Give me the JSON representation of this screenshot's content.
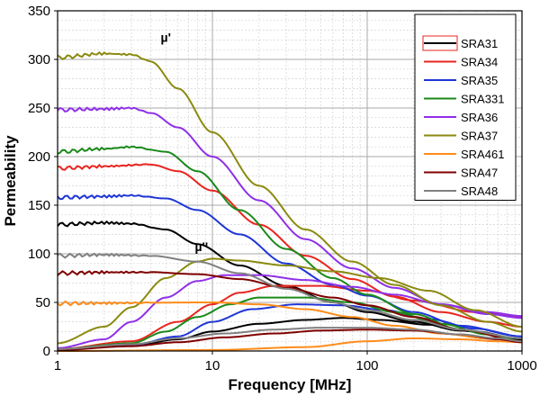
{
  "chart_data": {
    "type": "line",
    "title": "",
    "xlabel": "Frequency [MHz]",
    "ylabel": "Permeability",
    "x_scale": "log",
    "xlim": [
      1,
      1000
    ],
    "ylim": [
      0,
      350
    ],
    "x_ticks": [
      "1",
      "10",
      "100",
      "1000"
    ],
    "y_ticks": [
      "0",
      "50",
      "100",
      "150",
      "200",
      "250",
      "300",
      "350"
    ],
    "grid": true,
    "legend_position": "top-right",
    "annotations": [
      {
        "text": "µ'",
        "x": 5,
        "y": 318
      },
      {
        "text": "µ''",
        "x": 8.5,
        "y": 103
      }
    ],
    "series": [
      {
        "name": "SRA31",
        "color": "#000000",
        "mu_real": [
          [
            1,
            130
          ],
          [
            2,
            132
          ],
          [
            3,
            131
          ],
          [
            5,
            125
          ],
          [
            8,
            110
          ],
          [
            15,
            88
          ],
          [
            30,
            67
          ],
          [
            60,
            50
          ],
          [
            100,
            40
          ],
          [
            200,
            30
          ],
          [
            400,
            21
          ],
          [
            1000,
            12
          ]
        ],
        "mu_imag": [
          [
            1,
            2
          ],
          [
            3,
            5
          ],
          [
            6,
            12
          ],
          [
            10,
            20
          ],
          [
            20,
            28
          ],
          [
            40,
            32
          ],
          [
            70,
            34
          ],
          [
            120,
            32
          ],
          [
            250,
            27
          ],
          [
            500,
            20
          ],
          [
            1000,
            12
          ]
        ]
      },
      {
        "name": "SRA34",
        "color": "#e8251f",
        "mu_real": [
          [
            1,
            188
          ],
          [
            2,
            190
          ],
          [
            4,
            192
          ],
          [
            6,
            185
          ],
          [
            10,
            165
          ],
          [
            20,
            130
          ],
          [
            40,
            98
          ],
          [
            80,
            74
          ],
          [
            150,
            56
          ],
          [
            300,
            40
          ],
          [
            600,
            30
          ],
          [
            1000,
            25
          ]
        ],
        "mu_imag": [
          [
            1,
            2
          ],
          [
            3,
            10
          ],
          [
            6,
            30
          ],
          [
            10,
            48
          ],
          [
            15,
            60
          ],
          [
            25,
            67
          ],
          [
            50,
            67
          ],
          [
            100,
            62
          ],
          [
            200,
            52
          ],
          [
            500,
            40
          ],
          [
            1000,
            35
          ]
        ]
      },
      {
        "name": "SRA35",
        "color": "#1f36d6",
        "mu_real": [
          [
            1,
            158
          ],
          [
            2,
            159
          ],
          [
            3,
            160
          ],
          [
            5,
            157
          ],
          [
            8,
            145
          ],
          [
            15,
            120
          ],
          [
            30,
            90
          ],
          [
            60,
            68
          ],
          [
            100,
            57
          ],
          [
            200,
            40
          ],
          [
            400,
            26
          ],
          [
            1000,
            15
          ]
        ],
        "mu_imag": [
          [
            1,
            2
          ],
          [
            3,
            6
          ],
          [
            6,
            15
          ],
          [
            10,
            30
          ],
          [
            18,
            43
          ],
          [
            35,
            48
          ],
          [
            70,
            47
          ],
          [
            130,
            42
          ],
          [
            250,
            33
          ],
          [
            500,
            23
          ],
          [
            1000,
            15
          ]
        ]
      },
      {
        "name": "SRA331",
        "color": "#1a8a1a",
        "mu_real": [
          [
            1,
            205
          ],
          [
            2,
            208
          ],
          [
            3,
            210
          ],
          [
            5,
            205
          ],
          [
            8,
            185
          ],
          [
            15,
            145
          ],
          [
            30,
            105
          ],
          [
            60,
            75
          ],
          [
            100,
            58
          ],
          [
            200,
            38
          ],
          [
            400,
            22
          ],
          [
            1000,
            10
          ]
        ],
        "mu_imag": [
          [
            1,
            2
          ],
          [
            3,
            8
          ],
          [
            5,
            20
          ],
          [
            8,
            35
          ],
          [
            13,
            48
          ],
          [
            20,
            55
          ],
          [
            40,
            55
          ],
          [
            80,
            50
          ],
          [
            150,
            40
          ],
          [
            300,
            28
          ],
          [
            600,
            17
          ],
          [
            1000,
            10
          ]
        ]
      },
      {
        "name": "SRA36",
        "color": "#8f2fe8",
        "mu_real": [
          [
            1,
            248
          ],
          [
            2,
            249
          ],
          [
            3,
            250
          ],
          [
            4,
            245
          ],
          [
            6,
            230
          ],
          [
            10,
            200
          ],
          [
            20,
            155
          ],
          [
            40,
            115
          ],
          [
            80,
            85
          ],
          [
            150,
            65
          ],
          [
            300,
            48
          ],
          [
            600,
            38
          ],
          [
            1000,
            34
          ]
        ],
        "mu_imag": [
          [
            1,
            3
          ],
          [
            2,
            12
          ],
          [
            3,
            30
          ],
          [
            5,
            55
          ],
          [
            8,
            72
          ],
          [
            12,
            78
          ],
          [
            20,
            78
          ],
          [
            40,
            73
          ],
          [
            80,
            66
          ],
          [
            150,
            58
          ],
          [
            300,
            48
          ],
          [
            600,
            40
          ],
          [
            1000,
            36
          ]
        ]
      },
      {
        "name": "SRA37",
        "color": "#8a8a10",
        "mu_real": [
          [
            1,
            302
          ],
          [
            2,
            306
          ],
          [
            3,
            305
          ],
          [
            4,
            298
          ],
          [
            6,
            270
          ],
          [
            10,
            225
          ],
          [
            20,
            170
          ],
          [
            40,
            125
          ],
          [
            80,
            92
          ],
          [
            150,
            68
          ],
          [
            300,
            47
          ],
          [
            600,
            30
          ],
          [
            1000,
            20
          ]
        ],
        "mu_imag": [
          [
            1,
            8
          ],
          [
            2,
            25
          ],
          [
            3,
            45
          ],
          [
            5,
            75
          ],
          [
            8,
            92
          ],
          [
            10,
            95
          ],
          [
            15,
            93
          ],
          [
            30,
            88
          ],
          [
            60,
            82
          ],
          [
            120,
            75
          ],
          [
            250,
            62
          ],
          [
            500,
            42
          ],
          [
            1000,
            25
          ]
        ]
      },
      {
        "name": "SRA461",
        "color": "#ff8c1a",
        "mu_real": [
          [
            1,
            49
          ],
          [
            10,
            50
          ],
          [
            20,
            48
          ],
          [
            40,
            43
          ],
          [
            80,
            35
          ],
          [
            150,
            26
          ],
          [
            300,
            18
          ],
          [
            600,
            13
          ],
          [
            1000,
            10
          ]
        ],
        "mu_imag": [
          [
            1,
            0
          ],
          [
            10,
            1
          ],
          [
            40,
            4
          ],
          [
            100,
            10
          ],
          [
            200,
            13
          ],
          [
            400,
            12
          ],
          [
            700,
            10
          ],
          [
            1000,
            9
          ]
        ]
      },
      {
        "name": "SRA47",
        "color": "#800000",
        "mu_real": [
          [
            1,
            80
          ],
          [
            2,
            81
          ],
          [
            4,
            81
          ],
          [
            8,
            79
          ],
          [
            15,
            74
          ],
          [
            30,
            65
          ],
          [
            60,
            55
          ],
          [
            100,
            47
          ],
          [
            200,
            35
          ],
          [
            400,
            22
          ],
          [
            1000,
            10
          ]
        ],
        "mu_imag": [
          [
            1,
            1
          ],
          [
            3,
            5
          ],
          [
            6,
            9
          ],
          [
            12,
            14
          ],
          [
            25,
            18
          ],
          [
            50,
            21
          ],
          [
            100,
            22
          ],
          [
            200,
            21
          ],
          [
            400,
            17
          ],
          [
            700,
            12
          ],
          [
            1000,
            9
          ]
        ]
      },
      {
        "name": "SRA48",
        "color": "#808080",
        "mu_real": [
          [
            1,
            98
          ],
          [
            2,
            99
          ],
          [
            4,
            98
          ],
          [
            8,
            92
          ],
          [
            15,
            80
          ],
          [
            30,
            64
          ],
          [
            60,
            50
          ],
          [
            100,
            42
          ],
          [
            200,
            32
          ],
          [
            400,
            22
          ],
          [
            1000,
            13
          ]
        ],
        "mu_imag": [
          [
            1,
            2
          ],
          [
            3,
            7
          ],
          [
            6,
            13
          ],
          [
            12,
            18
          ],
          [
            25,
            22
          ],
          [
            50,
            24
          ],
          [
            100,
            24
          ],
          [
            200,
            22
          ],
          [
            400,
            17
          ],
          [
            700,
            13
          ],
          [
            1000,
            10
          ]
        ]
      }
    ]
  }
}
